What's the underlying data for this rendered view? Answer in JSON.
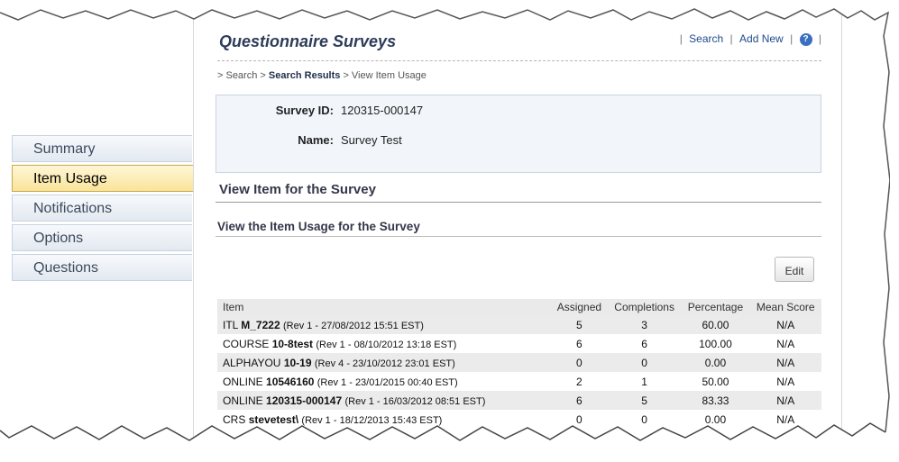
{
  "nav": {
    "items": [
      {
        "label": "Summary",
        "active": false
      },
      {
        "label": "Item Usage",
        "active": true
      },
      {
        "label": "Notifications",
        "active": false
      },
      {
        "label": "Options",
        "active": false
      },
      {
        "label": "Questions",
        "active": false
      }
    ]
  },
  "header": {
    "title": "Questionnaire Surveys",
    "links": {
      "search": "Search",
      "add_new": "Add New",
      "separator": "|"
    },
    "help_icon": "help-icon"
  },
  "breadcrumb": {
    "prefix": "> Search >",
    "current_parent": "Search Results",
    "tail": "> View Item Usage"
  },
  "survey": {
    "id_label": "Survey ID:",
    "id_value": "120315-000147",
    "name_label": "Name:",
    "name_value": "Survey Test"
  },
  "section": {
    "heading": "View Item for the Survey",
    "subheading": "View the Item Usage for the Survey"
  },
  "toolbar": {
    "edit_label": "Edit"
  },
  "table": {
    "columns": [
      "Item",
      "Assigned",
      "Completions",
      "Percentage",
      "Mean Score"
    ],
    "rows": [
      {
        "prefix": "ITL",
        "code": "M_7222",
        "rev": "(Rev 1 - 27/08/2012 15:51 EST)",
        "assigned": "5",
        "completions": "3",
        "percentage": "60.00",
        "mean": "N/A"
      },
      {
        "prefix": "COURSE",
        "code": "10-8test",
        "rev": "(Rev 1 - 08/10/2012 13:18 EST)",
        "assigned": "6",
        "completions": "6",
        "percentage": "100.00",
        "mean": "N/A"
      },
      {
        "prefix": "ALPHAYOU",
        "code": "10-19",
        "rev": "(Rev 4 - 23/10/2012 23:01 EST)",
        "assigned": "0",
        "completions": "0",
        "percentage": "0.00",
        "mean": "N/A"
      },
      {
        "prefix": "ONLINE",
        "code": "10546160",
        "rev": "(Rev 1 - 23/01/2015 00:40 EST)",
        "assigned": "2",
        "completions": "1",
        "percentage": "50.00",
        "mean": "N/A"
      },
      {
        "prefix": "ONLINE",
        "code": "120315-000147",
        "rev": "(Rev 1 - 16/03/2012 08:51 EST)",
        "assigned": "6",
        "completions": "5",
        "percentage": "83.33",
        "mean": "N/A"
      },
      {
        "prefix": "CRS",
        "code": "stevetest\\",
        "rev": "(Rev 1 - 18/12/2013 15:43 EST)",
        "assigned": "0",
        "completions": "0",
        "percentage": "0.00",
        "mean": "N/A"
      }
    ]
  },
  "colors": {
    "nav_active": "#f9e49a",
    "title": "#2d3c58",
    "link": "#1e4a8a",
    "infobox_bg": "#f2f6fa",
    "row_alt": "#ebebeb"
  }
}
